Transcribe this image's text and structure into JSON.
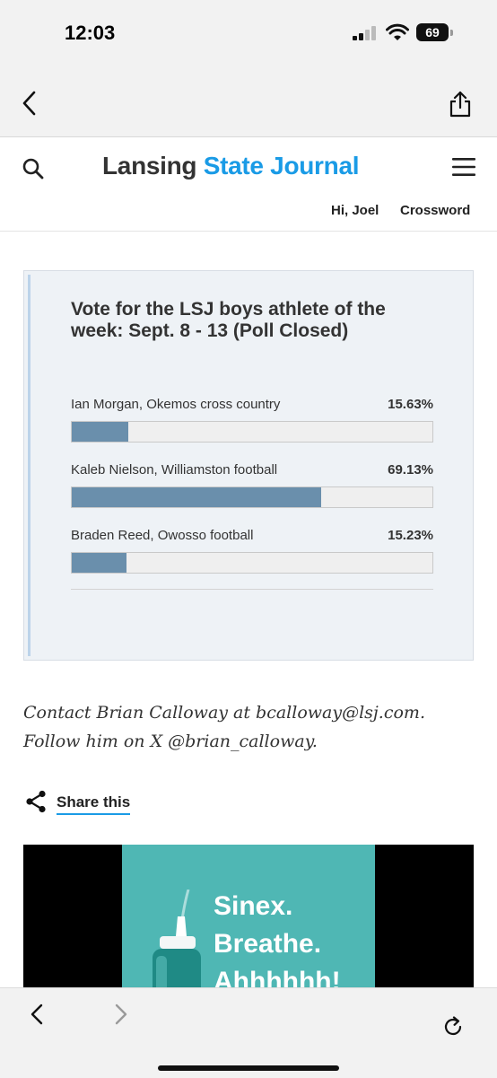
{
  "status_bar": {
    "time": "12:03",
    "battery": "69"
  },
  "site": {
    "logo_part1": "Lansing",
    "logo_part2": "State Journal",
    "greeting": "Hi, Joel",
    "crossword": "Crossword"
  },
  "poll": {
    "title": "Vote for the LSJ boys athlete of the week: Sept. 8 - 13 (Poll Closed)",
    "options": [
      {
        "label": "Ian Morgan, Okemos cross country",
        "percent_text": "15.63%",
        "percent": 15.63
      },
      {
        "label": "Kaleb Nielson, Williamston football",
        "percent_text": "69.13%",
        "percent": 69.13
      },
      {
        "label": "Braden Reed, Owosso football",
        "percent_text": "15.23%",
        "percent": 15.23
      }
    ]
  },
  "article": {
    "contact_line1": "Contact Brian Calloway at bcalloway@lsj.com.",
    "contact_line2": "Follow him on X @brian_calloway.",
    "share_label": "Share this"
  },
  "ad": {
    "line1": "Sinex.",
    "line2": "Breathe.",
    "line3": "Ahhhhhh!"
  },
  "colors": {
    "accent": "#1a9be6",
    "poll_bar": "#6a8fac",
    "ad_bg": "#4fb7b4"
  }
}
